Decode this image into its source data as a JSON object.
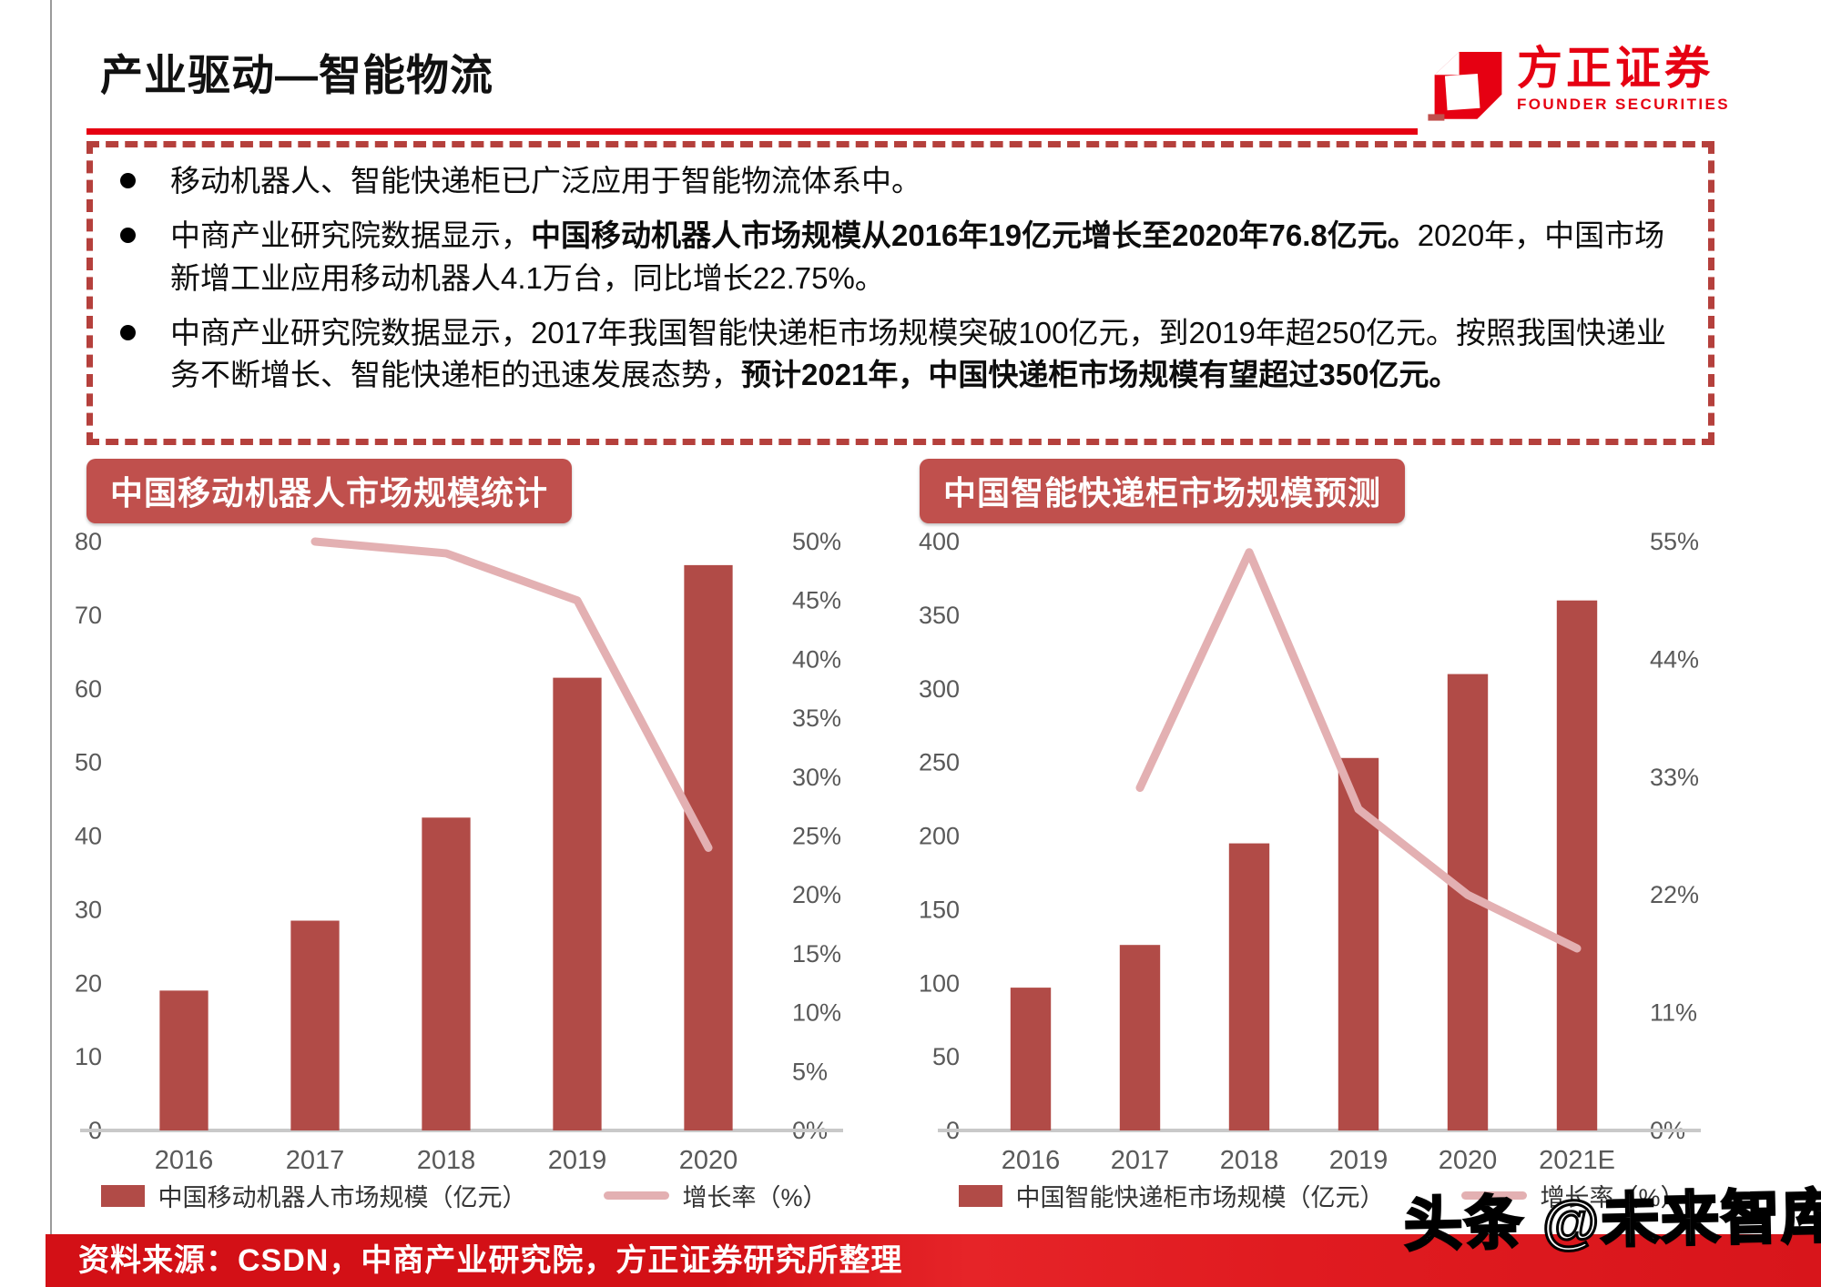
{
  "page": {
    "title": "产业驱动—智能物流"
  },
  "logo": {
    "name": "方正证券",
    "subtitle": "FOUNDER SECURITIES"
  },
  "bullets": [
    {
      "segments": [
        {
          "text": "移动机器人、智能快递柜已广泛应用于智能物流体系中。",
          "bold": false
        }
      ]
    },
    {
      "segments": [
        {
          "text": "中商产业研究院数据显示，",
          "bold": false
        },
        {
          "text": "中国移动机器人市场规模从2016年19亿元增长至2020年76.8亿元。",
          "bold": true
        },
        {
          "text": "2020年，中国市场新增工业应用移动机器人4.1万台，同比增长22.75%。",
          "bold": false
        }
      ]
    },
    {
      "segments": [
        {
          "text": "中商产业研究院数据显示，2017年我国智能快递柜市场规模突破100亿元，到2019年超250亿元。按照我国快递业务不断增长、智能快递柜的迅速发展态势，",
          "bold": false
        },
        {
          "text": "预计2021年，中国快递柜市场规模有望超过350亿元。",
          "bold": true
        }
      ]
    }
  ],
  "chart_data": [
    {
      "type": "bar",
      "title": "中国移动机器人市场规模统计",
      "categories": [
        "2016",
        "2017",
        "2018",
        "2019",
        "2020"
      ],
      "series": [
        {
          "name": "中国移动机器人市场规模（亿元）",
          "type": "bar",
          "axis": "left",
          "values": [
            19,
            28.5,
            42.5,
            61.5,
            76.8
          ]
        },
        {
          "name": "增长率（%）",
          "type": "line",
          "axis": "right",
          "values": [
            null,
            50,
            49,
            45,
            24
          ]
        }
      ],
      "left_axis": {
        "min": 0,
        "max": 80,
        "step": 10,
        "unit": ""
      },
      "right_axis": {
        "min": 0,
        "max": 50,
        "step": 5,
        "unit": "%"
      },
      "legend": [
        "中国移动机器人市场规模（亿元）",
        "增长率（%）"
      ],
      "grid": false,
      "legend_position": "bottom"
    },
    {
      "type": "bar",
      "title": "中国智能快递柜市场规模预测",
      "categories": [
        "2016",
        "2017",
        "2018",
        "2019",
        "2020",
        "2021E"
      ],
      "series": [
        {
          "name": "中国智能快递柜市场规模（亿元）",
          "type": "bar",
          "axis": "left",
          "values": [
            97,
            126,
            195,
            253,
            310,
            360
          ]
        },
        {
          "name": "增长率（%）",
          "type": "line",
          "axis": "right",
          "values": [
            null,
            32,
            54,
            30,
            22,
            17
          ]
        }
      ],
      "left_axis": {
        "min": 0,
        "max": 400,
        "step": 50,
        "unit": ""
      },
      "right_axis": {
        "min": 0,
        "max": 55,
        "step": 11,
        "unit": "%"
      },
      "legend": [
        "中国智能快递柜市场规模（亿元）",
        "增长率（%）"
      ],
      "grid": false,
      "legend_position": "bottom"
    }
  ],
  "footer": {
    "source": "资料来源：CSDN，中商产业研究院，方正证券研究所整理"
  },
  "watermark": "头条 @未来智库",
  "colors": {
    "accent": "#e60012",
    "bar": "#b14b47",
    "line": "#e3b0b2",
    "badge": "#c0504d",
    "dash_border": "#b5403c",
    "axis_text": "#595959",
    "axis_line": "#c9c9c9",
    "footer": "#d9161c"
  }
}
